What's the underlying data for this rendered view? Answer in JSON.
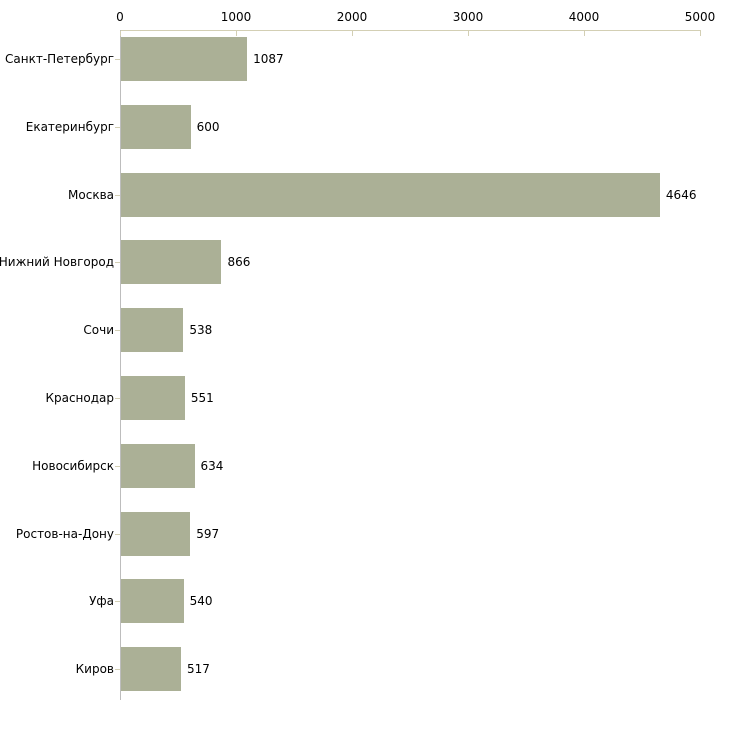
{
  "chart_data": {
    "type": "bar",
    "orientation": "horizontal",
    "title": "",
    "categories": [
      "Санкт-Петербург",
      "Екатеринбург",
      "Москва",
      "Нижний Новгород",
      "Сочи",
      "Краснодар",
      "Новосибирск",
      "Ростов-на-Дону",
      "Уфа",
      "Киров"
    ],
    "values": [
      1087,
      600,
      4646,
      866,
      538,
      551,
      634,
      597,
      540,
      517
    ],
    "x_axis": {
      "position": "top",
      "min": 0,
      "max": 5000,
      "ticks": [
        0,
        1000,
        2000,
        3000,
        4000,
        5000
      ]
    },
    "y_axis": {
      "position": "left"
    },
    "grid": false,
    "legend": false,
    "value_labels_shown": true,
    "colors": {
      "bar_fill": "#abb096",
      "x_axis_line": "#d3cfb4",
      "tick_mark": "#d3cfb4",
      "y_axis_line": "#bdbdbd",
      "label_text": "#000000",
      "background": "#ffffff"
    }
  }
}
